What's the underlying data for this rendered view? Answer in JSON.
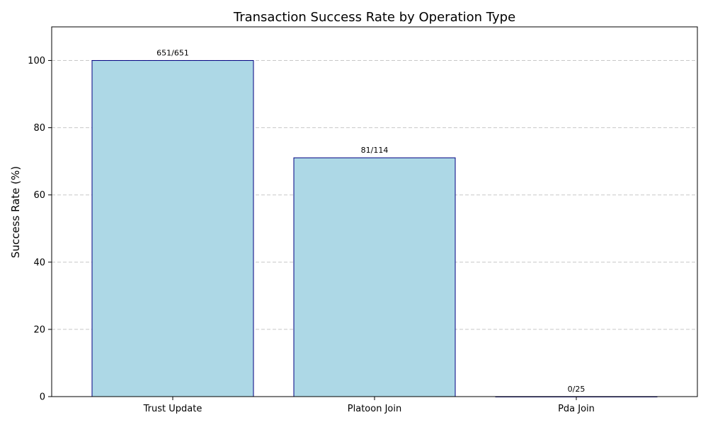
{
  "chart_data": {
    "type": "bar",
    "title": "Transaction Success Rate by Operation Type",
    "xlabel": "",
    "ylabel": "Success Rate (%)",
    "categories": [
      "Trust Update",
      "Platoon Join",
      "Pda Join"
    ],
    "values": [
      100,
      71.05,
      0
    ],
    "data_labels": [
      "651/651",
      "81/114",
      "0/25"
    ],
    "ylim": [
      0,
      110
    ],
    "yticks": [
      0,
      20,
      40,
      60,
      80,
      100
    ],
    "grid": "y-dashed",
    "colors": {
      "bar_fill": "#add8e6",
      "bar_edge": "#000080",
      "grid": "#c8c8c8",
      "axis": "#000000",
      "text": "#000000"
    }
  }
}
